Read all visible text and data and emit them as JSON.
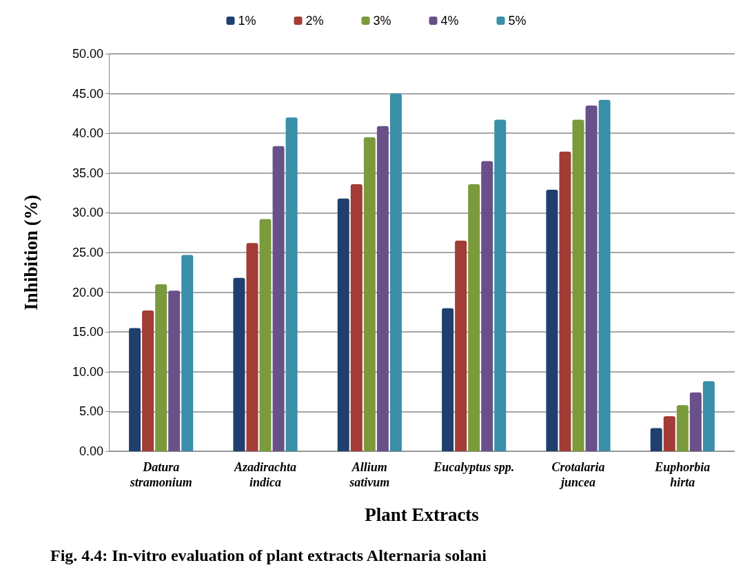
{
  "chart_data": {
    "type": "bar",
    "title": "Fig. 4.4: In-vitro evaluation of plant extracts Alternaria solani",
    "xlabel": "Plant Extracts",
    "ylabel": "Inhibition (%)",
    "categories": [
      "Datura\nstramonium",
      "Azadirachta\nindica",
      "Allium\nsativum",
      "Eucalyptus spp.",
      "Crotalaria\njuncea",
      "Euphorbia\nhirta"
    ],
    "series": [
      {
        "name": "1%",
        "color": "#1f3f6e",
        "values": [
          15.5,
          21.8,
          31.8,
          18.0,
          32.9,
          2.9
        ]
      },
      {
        "name": "2%",
        "color": "#a33b36",
        "values": [
          17.7,
          26.2,
          33.6,
          26.5,
          37.7,
          4.4
        ]
      },
      {
        "name": "3%",
        "color": "#7a9a3c",
        "values": [
          21.0,
          29.2,
          39.5,
          33.6,
          41.7,
          5.8
        ]
      },
      {
        "name": "4%",
        "color": "#6a5089",
        "values": [
          20.2,
          38.4,
          40.9,
          36.5,
          43.5,
          7.4
        ]
      },
      {
        "name": "5%",
        "color": "#3a8fa8",
        "values": [
          24.7,
          42.0,
          45.0,
          41.7,
          44.2,
          8.8
        ]
      }
    ],
    "ylim": [
      0,
      50
    ],
    "yticks": [
      {
        "value": 0,
        "label": "0.00"
      },
      {
        "value": 5,
        "label": "5.00"
      },
      {
        "value": 10,
        "label": "10.00"
      },
      {
        "value": 15,
        "label": "15.00"
      },
      {
        "value": 20,
        "label": "20.00"
      },
      {
        "value": 25,
        "label": "25.00"
      },
      {
        "value": 30,
        "label": "30.00"
      },
      {
        "value": 35,
        "label": "35.00"
      },
      {
        "value": 40,
        "label": "40.00"
      },
      {
        "value": 45,
        "label": "45.00"
      },
      {
        "value": 50,
        "label": "50.00"
      }
    ],
    "grid": "y",
    "legend": "top"
  }
}
